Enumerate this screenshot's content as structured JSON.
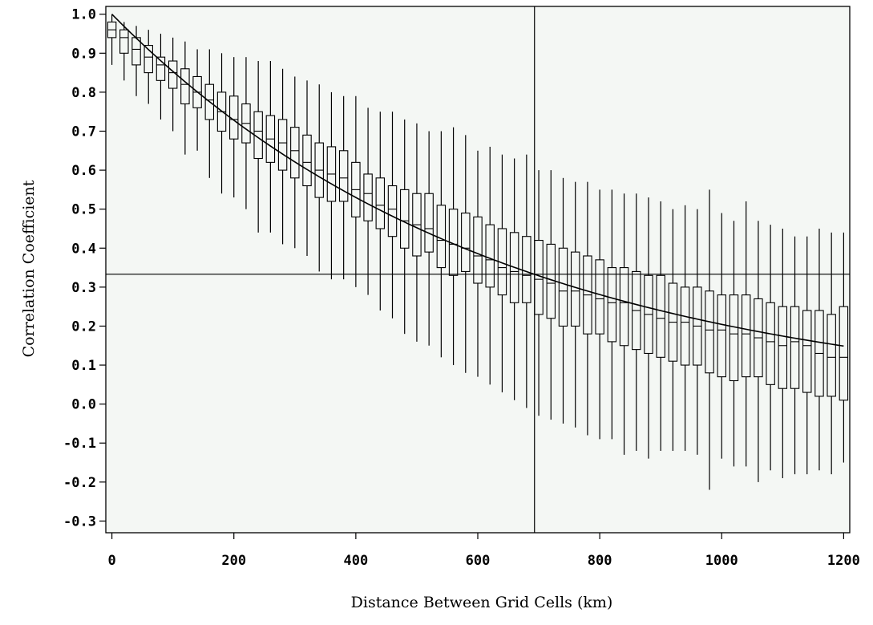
{
  "chart_data": {
    "type": "boxplot",
    "xlabel": "Distance Between Grid Cells (km)",
    "ylabel": "Correlation Coefficient",
    "xlim": [
      -10,
      1210
    ],
    "ylim": [
      -0.33,
      1.02
    ],
    "xticks": [
      0,
      200,
      400,
      600,
      800,
      1000,
      1200
    ],
    "xtick_labels": [
      "0",
      "200",
      "400",
      "600",
      "800",
      "1000",
      "1200"
    ],
    "yticks": [
      1.0,
      0.9,
      0.8,
      0.7,
      0.6,
      0.5,
      0.4,
      0.3,
      0.2,
      0.1,
      0.0,
      -0.1,
      -0.2,
      -0.3
    ],
    "ytick_labels": [
      "1.0",
      "0.9",
      "0.8",
      "0.7",
      "0.6",
      "0.5",
      "0.4",
      "0.3",
      "0.2",
      "0.1",
      "0.0",
      "-0.1",
      "-0.2",
      "-0.3"
    ],
    "reference_lines": {
      "vertical_x": 693,
      "horizontal_y": 0.333
    },
    "fit_curve": {
      "form": "exp(-x/d)",
      "d_km": 630,
      "x_range": [
        0,
        1200
      ]
    },
    "box_spacing_km": 20,
    "boxes": [
      {
        "x": 0,
        "q1": 0.94,
        "median": 0.96,
        "q3": 0.98,
        "min": 0.87,
        "max": 1.0
      },
      {
        "x": 20,
        "q1": 0.9,
        "median": 0.94,
        "q3": 0.96,
        "min": 0.83,
        "max": 0.98
      },
      {
        "x": 40,
        "q1": 0.87,
        "median": 0.91,
        "q3": 0.94,
        "min": 0.79,
        "max": 0.97
      },
      {
        "x": 60,
        "q1": 0.85,
        "median": 0.89,
        "q3": 0.92,
        "min": 0.77,
        "max": 0.96
      },
      {
        "x": 80,
        "q1": 0.83,
        "median": 0.87,
        "q3": 0.89,
        "min": 0.73,
        "max": 0.95
      },
      {
        "x": 100,
        "q1": 0.81,
        "median": 0.85,
        "q3": 0.88,
        "min": 0.7,
        "max": 0.94
      },
      {
        "x": 120,
        "q1": 0.77,
        "median": 0.82,
        "q3": 0.86,
        "min": 0.64,
        "max": 0.93
      },
      {
        "x": 140,
        "q1": 0.76,
        "median": 0.8,
        "q3": 0.84,
        "min": 0.65,
        "max": 0.91
      },
      {
        "x": 160,
        "q1": 0.73,
        "median": 0.78,
        "q3": 0.82,
        "min": 0.58,
        "max": 0.91
      },
      {
        "x": 180,
        "q1": 0.7,
        "median": 0.75,
        "q3": 0.8,
        "min": 0.54,
        "max": 0.9
      },
      {
        "x": 200,
        "q1": 0.68,
        "median": 0.73,
        "q3": 0.79,
        "min": 0.53,
        "max": 0.89
      },
      {
        "x": 220,
        "q1": 0.67,
        "median": 0.72,
        "q3": 0.77,
        "min": 0.5,
        "max": 0.89
      },
      {
        "x": 240,
        "q1": 0.63,
        "median": 0.7,
        "q3": 0.75,
        "min": 0.44,
        "max": 0.88
      },
      {
        "x": 260,
        "q1": 0.62,
        "median": 0.68,
        "q3": 0.74,
        "min": 0.44,
        "max": 0.88
      },
      {
        "x": 280,
        "q1": 0.6,
        "median": 0.67,
        "q3": 0.73,
        "min": 0.41,
        "max": 0.86
      },
      {
        "x": 300,
        "q1": 0.58,
        "median": 0.65,
        "q3": 0.71,
        "min": 0.4,
        "max": 0.84
      },
      {
        "x": 320,
        "q1": 0.56,
        "median": 0.62,
        "q3": 0.69,
        "min": 0.38,
        "max": 0.83
      },
      {
        "x": 340,
        "q1": 0.53,
        "median": 0.6,
        "q3": 0.67,
        "min": 0.34,
        "max": 0.82
      },
      {
        "x": 360,
        "q1": 0.52,
        "median": 0.59,
        "q3": 0.66,
        "min": 0.32,
        "max": 0.8
      },
      {
        "x": 380,
        "q1": 0.52,
        "median": 0.58,
        "q3": 0.65,
        "min": 0.32,
        "max": 0.79
      },
      {
        "x": 400,
        "q1": 0.48,
        "median": 0.55,
        "q3": 0.62,
        "min": 0.3,
        "max": 0.79
      },
      {
        "x": 420,
        "q1": 0.47,
        "median": 0.54,
        "q3": 0.59,
        "min": 0.28,
        "max": 0.76
      },
      {
        "x": 440,
        "q1": 0.45,
        "median": 0.51,
        "q3": 0.58,
        "min": 0.24,
        "max": 0.75
      },
      {
        "x": 460,
        "q1": 0.43,
        "median": 0.5,
        "q3": 0.56,
        "min": 0.22,
        "max": 0.75
      },
      {
        "x": 480,
        "q1": 0.4,
        "median": 0.47,
        "q3": 0.55,
        "min": 0.18,
        "max": 0.73
      },
      {
        "x": 500,
        "q1": 0.38,
        "median": 0.46,
        "q3": 0.54,
        "min": 0.16,
        "max": 0.72
      },
      {
        "x": 520,
        "q1": 0.39,
        "median": 0.45,
        "q3": 0.54,
        "min": 0.15,
        "max": 0.7
      },
      {
        "x": 540,
        "q1": 0.35,
        "median": 0.42,
        "q3": 0.51,
        "min": 0.12,
        "max": 0.7
      },
      {
        "x": 560,
        "q1": 0.33,
        "median": 0.41,
        "q3": 0.5,
        "min": 0.1,
        "max": 0.71
      },
      {
        "x": 580,
        "q1": 0.34,
        "median": 0.4,
        "q3": 0.49,
        "min": 0.08,
        "max": 0.69
      },
      {
        "x": 600,
        "q1": 0.31,
        "median": 0.38,
        "q3": 0.48,
        "min": 0.07,
        "max": 0.65
      },
      {
        "x": 620,
        "q1": 0.3,
        "median": 0.37,
        "q3": 0.46,
        "min": 0.05,
        "max": 0.66
      },
      {
        "x": 640,
        "q1": 0.28,
        "median": 0.35,
        "q3": 0.45,
        "min": 0.03,
        "max": 0.64
      },
      {
        "x": 660,
        "q1": 0.26,
        "median": 0.34,
        "q3": 0.44,
        "min": 0.01,
        "max": 0.63
      },
      {
        "x": 680,
        "q1": 0.26,
        "median": 0.33,
        "q3": 0.43,
        "min": -0.01,
        "max": 0.64
      },
      {
        "x": 700,
        "q1": 0.23,
        "median": 0.32,
        "q3": 0.42,
        "min": -0.03,
        "max": 0.6
      },
      {
        "x": 720,
        "q1": 0.22,
        "median": 0.31,
        "q3": 0.41,
        "min": -0.04,
        "max": 0.6
      },
      {
        "x": 740,
        "q1": 0.2,
        "median": 0.29,
        "q3": 0.4,
        "min": -0.05,
        "max": 0.58
      },
      {
        "x": 760,
        "q1": 0.2,
        "median": 0.29,
        "q3": 0.39,
        "min": -0.06,
        "max": 0.57
      },
      {
        "x": 780,
        "q1": 0.18,
        "median": 0.28,
        "q3": 0.38,
        "min": -0.08,
        "max": 0.57
      },
      {
        "x": 800,
        "q1": 0.18,
        "median": 0.27,
        "q3": 0.37,
        "min": -0.09,
        "max": 0.55
      },
      {
        "x": 820,
        "q1": 0.16,
        "median": 0.26,
        "q3": 0.35,
        "min": -0.09,
        "max": 0.55
      },
      {
        "x": 840,
        "q1": 0.15,
        "median": 0.26,
        "q3": 0.35,
        "min": -0.13,
        "max": 0.54
      },
      {
        "x": 860,
        "q1": 0.14,
        "median": 0.24,
        "q3": 0.34,
        "min": -0.12,
        "max": 0.54
      },
      {
        "x": 880,
        "q1": 0.13,
        "median": 0.23,
        "q3": 0.33,
        "min": -0.14,
        "max": 0.53
      },
      {
        "x": 900,
        "q1": 0.12,
        "median": 0.22,
        "q3": 0.33,
        "min": -0.12,
        "max": 0.52
      },
      {
        "x": 920,
        "q1": 0.11,
        "median": 0.21,
        "q3": 0.31,
        "min": -0.12,
        "max": 0.5
      },
      {
        "x": 940,
        "q1": 0.1,
        "median": 0.21,
        "q3": 0.3,
        "min": -0.12,
        "max": 0.51
      },
      {
        "x": 960,
        "q1": 0.1,
        "median": 0.2,
        "q3": 0.3,
        "min": -0.13,
        "max": 0.5
      },
      {
        "x": 980,
        "q1": 0.08,
        "median": 0.19,
        "q3": 0.29,
        "min": -0.22,
        "max": 0.55
      },
      {
        "x": 1000,
        "q1": 0.07,
        "median": 0.19,
        "q3": 0.28,
        "min": -0.14,
        "max": 0.49
      },
      {
        "x": 1020,
        "q1": 0.06,
        "median": 0.18,
        "q3": 0.28,
        "min": -0.16,
        "max": 0.47
      },
      {
        "x": 1040,
        "q1": 0.07,
        "median": 0.18,
        "q3": 0.28,
        "min": -0.16,
        "max": 0.52
      },
      {
        "x": 1060,
        "q1": 0.07,
        "median": 0.17,
        "q3": 0.27,
        "min": -0.2,
        "max": 0.47
      },
      {
        "x": 1080,
        "q1": 0.05,
        "median": 0.16,
        "q3": 0.26,
        "min": -0.17,
        "max": 0.46
      },
      {
        "x": 1100,
        "q1": 0.04,
        "median": 0.15,
        "q3": 0.25,
        "min": -0.19,
        "max": 0.45
      },
      {
        "x": 1120,
        "q1": 0.04,
        "median": 0.16,
        "q3": 0.25,
        "min": -0.18,
        "max": 0.43
      },
      {
        "x": 1140,
        "q1": 0.03,
        "median": 0.15,
        "q3": 0.24,
        "min": -0.18,
        "max": 0.43
      },
      {
        "x": 1160,
        "q1": 0.02,
        "median": 0.13,
        "q3": 0.24,
        "min": -0.17,
        "max": 0.45
      },
      {
        "x": 1180,
        "q1": 0.02,
        "median": 0.12,
        "q3": 0.23,
        "min": -0.18,
        "max": 0.44
      },
      {
        "x": 1200,
        "q1": 0.01,
        "median": 0.12,
        "q3": 0.25,
        "min": -0.15,
        "max": 0.44
      }
    ]
  }
}
